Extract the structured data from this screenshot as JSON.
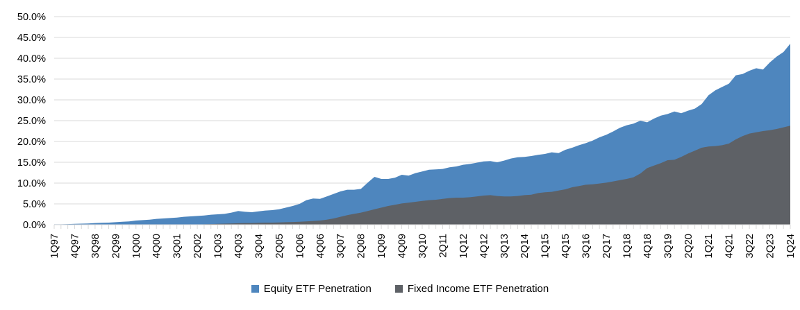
{
  "legend": {
    "items": [
      {
        "label": "Equity ETF Penetration",
        "color": "#4E86BE"
      },
      {
        "label": "Fixed Income ETF Penetration",
        "color": "#5E6166"
      }
    ]
  },
  "chart_data": {
    "type": "area",
    "mode": "overlay",
    "title": "",
    "xlabel": "",
    "ylabel": "",
    "ylim": [
      0,
      50
    ],
    "ytick_step": 5,
    "grid": true,
    "legend_position": "bottom",
    "gridline_color": "#D9D9D9",
    "axis_color": "#D9D9D9",
    "label_color": "#000000",
    "ytick_labels": [
      "0.0%",
      "5.0%",
      "10.0%",
      "15.0%",
      "20.0%",
      "25.0%",
      "30.0%",
      "35.0%",
      "40.0%",
      "45.0%",
      "50.0%"
    ],
    "xtick_every": 3,
    "xtick_labels": [
      "1Q97",
      "4Q97",
      "3Q98",
      "2Q99",
      "1Q00",
      "4Q00",
      "3Q01",
      "2Q02",
      "1Q03",
      "4Q03",
      "3Q04",
      "2Q05",
      "1Q06",
      "4Q06",
      "3Q07",
      "2Q08",
      "1Q09",
      "4Q09",
      "3Q10",
      "2Q11",
      "1Q12",
      "4Q12",
      "3Q13",
      "2Q14",
      "1Q15",
      "4Q15",
      "3Q16",
      "2Q17",
      "1Q18",
      "4Q18",
      "3Q19",
      "2Q20",
      "1Q21",
      "4Q21",
      "3Q22",
      "2Q23",
      "1Q24"
    ],
    "x": [
      "1Q97",
      "2Q97",
      "3Q97",
      "4Q97",
      "1Q98",
      "2Q98",
      "3Q98",
      "4Q98",
      "1Q99",
      "2Q99",
      "3Q99",
      "4Q99",
      "1Q00",
      "2Q00",
      "3Q00",
      "4Q00",
      "1Q01",
      "2Q01",
      "3Q01",
      "4Q01",
      "1Q02",
      "2Q02",
      "3Q02",
      "4Q02",
      "1Q03",
      "2Q03",
      "3Q03",
      "4Q03",
      "1Q04",
      "2Q04",
      "3Q04",
      "4Q04",
      "1Q05",
      "2Q05",
      "3Q05",
      "4Q05",
      "1Q06",
      "2Q06",
      "3Q06",
      "4Q06",
      "1Q07",
      "2Q07",
      "3Q07",
      "4Q07",
      "1Q08",
      "2Q08",
      "3Q08",
      "4Q08",
      "1Q09",
      "2Q09",
      "3Q09",
      "4Q09",
      "1Q10",
      "2Q10",
      "3Q10",
      "4Q10",
      "1Q11",
      "2Q11",
      "3Q11",
      "4Q11",
      "1Q12",
      "2Q12",
      "3Q12",
      "4Q12",
      "1Q13",
      "2Q13",
      "3Q13",
      "4Q13",
      "1Q14",
      "2Q14",
      "3Q14",
      "4Q14",
      "1Q15",
      "2Q15",
      "3Q15",
      "4Q15",
      "1Q16",
      "2Q16",
      "3Q16",
      "4Q16",
      "1Q17",
      "2Q17",
      "3Q17",
      "4Q17",
      "1Q18",
      "2Q18",
      "3Q18",
      "4Q18",
      "1Q19",
      "2Q19",
      "3Q19",
      "4Q19",
      "1Q20",
      "2Q20",
      "3Q20",
      "4Q20",
      "1Q21",
      "2Q21",
      "3Q21",
      "4Q21",
      "1Q22",
      "2Q22",
      "3Q22",
      "4Q22",
      "1Q23",
      "2Q23",
      "3Q23",
      "4Q23",
      "1Q24"
    ],
    "series": [
      {
        "name": "Equity ETF Penetration",
        "color": "#4E86BE",
        "values": [
          0.1,
          0.1,
          0.15,
          0.2,
          0.25,
          0.3,
          0.4,
          0.45,
          0.5,
          0.6,
          0.7,
          0.8,
          1.0,
          1.1,
          1.2,
          1.4,
          1.5,
          1.6,
          1.7,
          1.9,
          2.0,
          2.1,
          2.2,
          2.4,
          2.5,
          2.6,
          2.9,
          3.3,
          3.1,
          3.0,
          3.2,
          3.4,
          3.5,
          3.7,
          4.1,
          4.5,
          5.0,
          5.9,
          6.3,
          6.2,
          6.8,
          7.4,
          8.0,
          8.4,
          8.4,
          8.6,
          10.1,
          11.5,
          11.0,
          11.0,
          11.3,
          12.0,
          11.8,
          12.4,
          12.8,
          13.2,
          13.3,
          13.4,
          13.8,
          14.0,
          14.4,
          14.6,
          14.9,
          15.2,
          15.3,
          15.0,
          15.4,
          15.9,
          16.2,
          16.3,
          16.5,
          16.8,
          17.0,
          17.4,
          17.2,
          18.0,
          18.5,
          19.1,
          19.6,
          20.2,
          21.0,
          21.6,
          22.4,
          23.3,
          23.9,
          24.3,
          25.0,
          24.6,
          25.5,
          26.2,
          26.6,
          27.2,
          26.8,
          27.4,
          27.9,
          29.0,
          31.1,
          32.3,
          33.1,
          33.9,
          35.9,
          36.2,
          37.0,
          37.6,
          37.3,
          39.0,
          40.4,
          41.5,
          43.5
        ]
      },
      {
        "name": "Fixed Income ETF Penetration",
        "color": "#5E6166",
        "values": [
          0,
          0,
          0,
          0,
          0,
          0,
          0,
          0,
          0,
          0,
          0,
          0,
          0,
          0,
          0,
          0,
          0,
          0,
          0,
          0,
          0,
          0.05,
          0.1,
          0.15,
          0.2,
          0.25,
          0.3,
          0.35,
          0.4,
          0.4,
          0.45,
          0.5,
          0.5,
          0.55,
          0.6,
          0.65,
          0.7,
          0.8,
          0.9,
          1.0,
          1.2,
          1.5,
          1.9,
          2.3,
          2.6,
          2.9,
          3.3,
          3.7,
          4.1,
          4.5,
          4.8,
          5.1,
          5.3,
          5.5,
          5.7,
          5.9,
          6.0,
          6.2,
          6.4,
          6.5,
          6.5,
          6.6,
          6.8,
          7.0,
          7.1,
          6.9,
          6.8,
          6.8,
          6.9,
          7.1,
          7.2,
          7.6,
          7.8,
          7.9,
          8.2,
          8.5,
          9.0,
          9.3,
          9.6,
          9.7,
          9.9,
          10.1,
          10.4,
          10.7,
          11.0,
          11.4,
          12.3,
          13.6,
          14.2,
          14.8,
          15.5,
          15.6,
          16.3,
          17.1,
          17.8,
          18.5,
          18.8,
          18.9,
          19.1,
          19.5,
          20.5,
          21.3,
          21.9,
          22.2,
          22.5,
          22.7,
          23.0,
          23.4,
          23.8
        ]
      }
    ]
  }
}
